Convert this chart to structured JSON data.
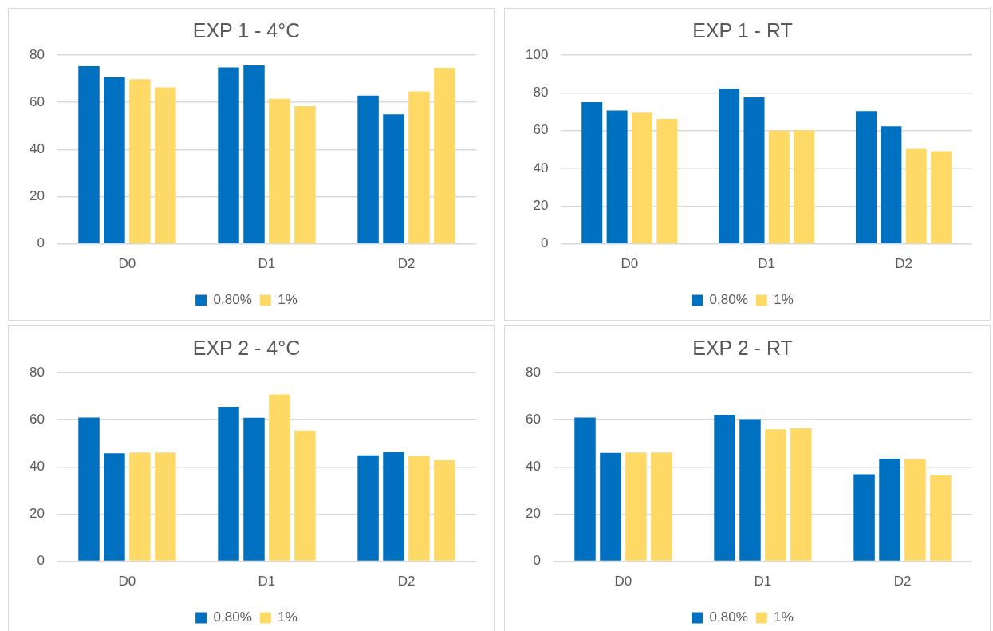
{
  "chart_data": [
    {
      "type": "bar",
      "title": "EXP 1 - 4°C",
      "categories": [
        "D0",
        "D1",
        "D2"
      ],
      "ylim": [
        0,
        80
      ],
      "yticks": [
        0,
        20,
        40,
        60,
        80
      ],
      "grid": "y",
      "legend": "bottom",
      "series": [
        {
          "name": "0,80%",
          "color": "#0070c0",
          "values": [
            75.3,
            74.8,
            62.8
          ]
        },
        {
          "color": "#0070c0",
          "values": [
            70.6,
            75.6,
            54.9
          ]
        },
        {
          "name": "1%",
          "color": "#ffd966",
          "values": [
            69.8,
            61.5,
            64.6
          ]
        },
        {
          "color": "#ffd966",
          "values": [
            66.3,
            58.4,
            74.6
          ]
        }
      ]
    },
    {
      "type": "bar",
      "title": "EXP 1 - RT",
      "categories": [
        "D0",
        "D1",
        "D2"
      ],
      "ylim": [
        0,
        100
      ],
      "yticks": [
        0,
        20,
        40,
        60,
        80,
        100
      ],
      "grid": "y",
      "legend": "bottom",
      "series": [
        {
          "name": "0,80%",
          "color": "#0070c0",
          "values": [
            75.1,
            82.1,
            70.3
          ]
        },
        {
          "color": "#0070c0",
          "values": [
            70.6,
            77.6,
            62.3
          ]
        },
        {
          "name": "1%",
          "color": "#ffd966",
          "values": [
            69.5,
            60,
            50.3
          ]
        },
        {
          "color": "#ffd966",
          "values": [
            66.2,
            60.2,
            49.1
          ]
        }
      ]
    },
    {
      "type": "bar",
      "title": "EXP 2 - 4°C",
      "categories": [
        "D0",
        "D1",
        "D2"
      ],
      "ylim": [
        0,
        80
      ],
      "yticks": [
        0,
        20,
        40,
        60,
        80
      ],
      "grid": "y",
      "legend": "bottom",
      "series": [
        {
          "name": "0,80%",
          "color": "#0070c0",
          "values": [
            60.9,
            65.5,
            44.9
          ]
        },
        {
          "color": "#0070c0",
          "values": [
            45.8,
            60.8,
            46.3
          ]
        },
        {
          "name": "1%",
          "color": "#ffd966",
          "values": [
            46.1,
            70.7,
            44.7
          ]
        },
        {
          "color": "#ffd966",
          "values": [
            46.1,
            55.4,
            42.8
          ]
        }
      ]
    },
    {
      "type": "bar",
      "title": "EXP 2 - RT",
      "categories": [
        "D0",
        "D1",
        "D2"
      ],
      "ylim": [
        0,
        80
      ],
      "yticks": [
        0,
        20,
        40,
        60,
        80
      ],
      "grid": "y",
      "legend": "bottom",
      "series": [
        {
          "name": "0,80%",
          "color": "#0070c0",
          "values": [
            60.9,
            62.1,
            36.9
          ]
        },
        {
          "color": "#0070c0",
          "values": [
            45.9,
            60.2,
            43.5
          ]
        },
        {
          "name": "1%",
          "color": "#ffd966",
          "values": [
            46.1,
            55.9,
            43.2
          ]
        },
        {
          "color": "#ffd966",
          "values": [
            46.1,
            56.3,
            36.5
          ]
        }
      ]
    }
  ]
}
